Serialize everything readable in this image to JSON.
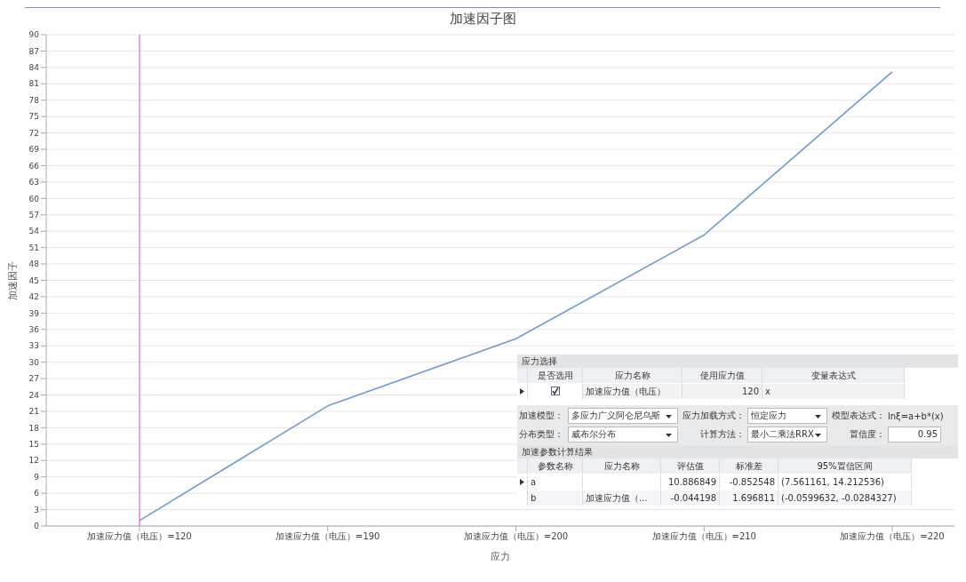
{
  "chart_data": {
    "type": "line",
    "title": "加速因子图",
    "xlabel": "应力",
    "ylabel": "加速因子",
    "categories": [
      "加速应力值（电压）=120",
      "加速应力值（电压）=190",
      "加速应力值（电压）=200",
      "加速应力值（电压）=210",
      "加速应力值（电压）=220"
    ],
    "series": [
      {
        "color": "#6f9bd1",
        "values": [
          1,
          22,
          34.3,
          53.3,
          83.2
        ]
      }
    ],
    "ylim": [
      0,
      90
    ],
    "yticks": [
      0,
      3,
      6,
      9,
      12,
      15,
      18,
      21,
      24,
      27,
      30,
      33,
      36,
      39,
      42,
      45,
      48,
      51,
      54,
      57,
      60,
      63,
      66,
      69,
      72,
      75,
      78,
      81,
      84,
      87,
      90
    ],
    "grid": "y",
    "legend": false,
    "marker": "none",
    "line_style": "solid",
    "ref_lines": [
      {
        "axis": "x",
        "value": "加速应力值（电压）=120",
        "color": "#e040e0"
      }
    ],
    "annotations": [
      "应力选择",
      "是否选用",
      "应力名称",
      "使用应力值",
      "变量表达式",
      "加速应力值（电压）",
      "120",
      "x",
      "加速模型：",
      "多应力广义阿仑尼乌斯",
      "应力加载方式：",
      "恒定应力",
      "模型表达式：",
      "lnξ=a+b*(x)",
      "分布类型：",
      "威布尔分布",
      "计算方法：",
      "最小二乘法RRX",
      "置信度：",
      "0.95",
      "加速参数计算结果",
      "参数名称",
      "应力名称",
      "评估值",
      "标准差",
      "95%置信区间",
      "a",
      "10.886849",
      "-0.852548",
      "(7.561161, 14.212536)",
      "b",
      "加速应力值（...",
      "-0.044198",
      "1.696811",
      "(-0.0599632, -0.0284327)"
    ]
  }
}
